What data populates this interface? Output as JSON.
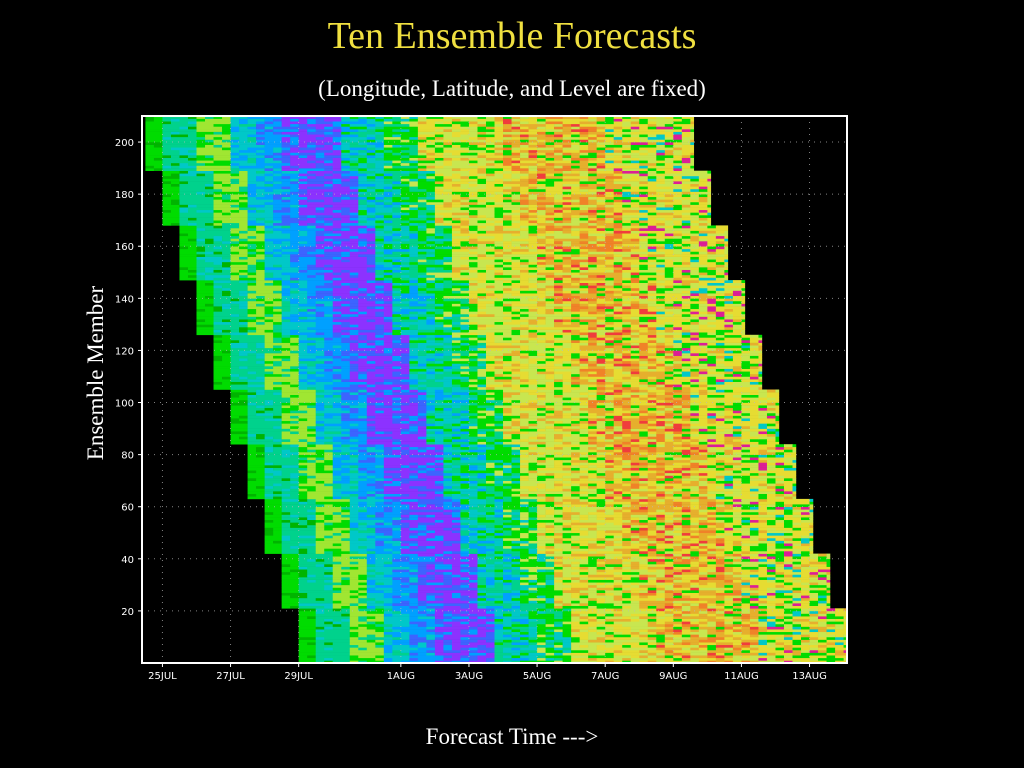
{
  "title": "Ten Ensemble Forecasts",
  "subtitle": "(Longitude, Latitude, and Level are fixed)",
  "chart_data": {
    "type": "heatmap",
    "xlabel": "Forecast Time --->",
    "ylabel": "Ensemble Member",
    "x_tick_labels": [
      "25JUL",
      "27JUL",
      "29JUL",
      "1AUG",
      "3AUG",
      "5AUG",
      "7AUG",
      "9AUG",
      "11AUG",
      "13AUG"
    ],
    "x_tick_days": [
      0,
      2,
      4,
      7,
      9,
      11,
      13,
      15,
      17,
      19
    ],
    "xlim_days": [
      -0.6,
      20.1
    ],
    "y_ticks": [
      20,
      40,
      60,
      80,
      100,
      120,
      140,
      160,
      180,
      200
    ],
    "ylim": [
      0,
      210
    ],
    "grid": true,
    "rows": 210,
    "forecasts": 10,
    "members_per_forecast": 21,
    "forecast_start_days": [
      4.0,
      3.5,
      3.0,
      2.5,
      2.0,
      1.5,
      1.0,
      0.5,
      0.0,
      -0.5
    ],
    "forecast_end_days": [
      20.1,
      19.6,
      19.1,
      18.6,
      18.1,
      17.6,
      17.1,
      16.6,
      16.1,
      15.6
    ],
    "colors": {
      "dark_green": "#00b400",
      "lime": "#00dc00",
      "pale_green": "#a0e632",
      "teal": "#00d28c",
      "cyan": "#00c8c8",
      "light_blue": "#00a0ff",
      "blue": "#3c64ff",
      "violet": "#8c32ff",
      "yellow_green": "#c8e650",
      "yellow": "#e6dc32",
      "gold": "#e6af2d",
      "orange": "#f08228",
      "red": "#f03c3c",
      "magenta": "#dc1e96",
      "background": "#000000",
      "frame": "#ffffff",
      "title": "#f0e040"
    }
  }
}
